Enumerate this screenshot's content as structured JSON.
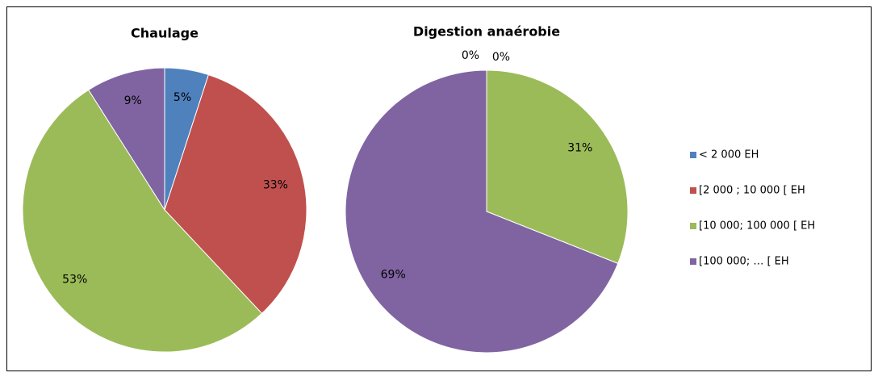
{
  "chart_data": [
    {
      "type": "pie",
      "title": "Chaulage",
      "categories": [
        "< 2 000 EH",
        "[2 000 ; 10 000 [ EH",
        "[10 000; 100 000 [ EH",
        "[100 000; … [ EH"
      ],
      "colors": [
        "#4f81bd",
        "#c0504d",
        "#9bbb59",
        "#8064a2"
      ],
      "values": [
        5,
        33,
        53,
        9
      ],
      "value_labels": [
        "5%",
        "33%",
        "53%",
        "9%"
      ]
    },
    {
      "type": "pie",
      "title": "Digestion anaérobie",
      "values": [
        0,
        0,
        31,
        69
      ],
      "value_labels": [
        "0%",
        "0%",
        "31%",
        "69%"
      ]
    }
  ]
}
